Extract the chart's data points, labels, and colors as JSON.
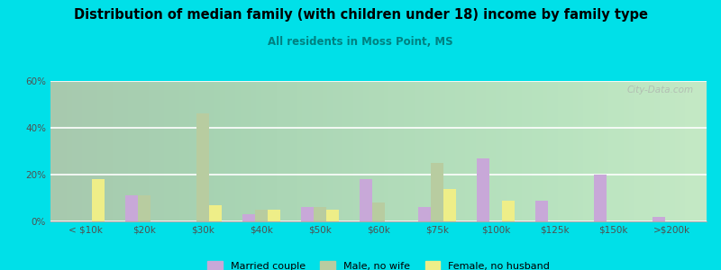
{
  "title": "Distribution of median family (with children under 18) income by family type",
  "subtitle": "All residents in Moss Point, MS",
  "categories": [
    "< $10k",
    "$20k",
    "$30k",
    "$40k",
    "$50k",
    "$60k",
    "$75k",
    "$100k",
    "$125k",
    "$150k",
    ">$200k"
  ],
  "married_couple": [
    0,
    11,
    0,
    3,
    6,
    18,
    6,
    27,
    9,
    20,
    2
  ],
  "male_no_wife": [
    0,
    11,
    46,
    5,
    6,
    8,
    25,
    0,
    0,
    0,
    0
  ],
  "female_no_husb": [
    18,
    0,
    7,
    5,
    5,
    0,
    14,
    9,
    0,
    0,
    0
  ],
  "color_married": "#c8a8d8",
  "color_male": "#b8cca0",
  "color_female": "#eeee88",
  "bg_outer": "#00e0e8",
  "ylim": [
    0,
    60
  ],
  "yticks": [
    0,
    20,
    40,
    60
  ],
  "watermark": "City-Data.com"
}
